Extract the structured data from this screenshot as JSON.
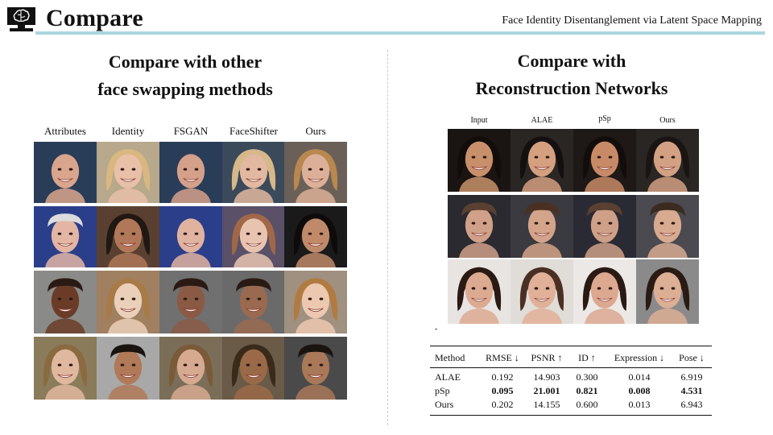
{
  "header": {
    "title": "Compare",
    "subtitle": "Face Identity Disentanglement via Latent Space Mapping"
  },
  "left": {
    "title_line1": "Compare with other",
    "title_line2": "face swapping methods",
    "columns": [
      "Attributes",
      "Identity",
      "FSGAN",
      "FaceShifter",
      "Ours"
    ]
  },
  "right": {
    "title_line1": "Compare with",
    "title_line2": "Reconstruction Networks",
    "columns": [
      "Input",
      "ALAE",
      "pSp",
      "Ours"
    ]
  },
  "table": {
    "headers": [
      "Method",
      "RMSE ↓",
      "PSNR ↑",
      "ID ↑",
      "Expression ↓",
      "Pose ↓"
    ],
    "rows": [
      {
        "method": "ALAE",
        "rmse": "0.192",
        "psnr": "14.903",
        "id": "0.300",
        "expression": "0.014",
        "pose": "6.919"
      },
      {
        "method": "pSp",
        "rmse": "0.095",
        "psnr": "21.001",
        "id": "0.821",
        "expression": "0.008",
        "pose": "4.531"
      },
      {
        "method": "Ours",
        "rmse": "0.202",
        "psnr": "14.155",
        "id": "0.600",
        "expression": "0.013",
        "pose": "6.943"
      }
    ]
  },
  "stray_mark": "-",
  "colors": {
    "accent_rule": "#a9d6e0"
  },
  "icons": [
    "brain-monitor-icon"
  ]
}
